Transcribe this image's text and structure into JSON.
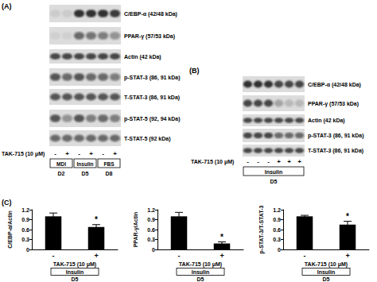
{
  "panel_labels": [
    "(A)",
    "(B)",
    "(C)"
  ],
  "blot_A": {
    "rows": [
      "C/EBP-α (42/48 kDa)",
      "PPAR-γ (57/53 kDa)",
      "Actin (42 kDa)",
      "p-STAT-3 (86, 91 kDa)",
      "T-STAT-3 (86, 91 kDa)",
      "p-STAT-5 (92, 94 kDa)",
      "T-STAT-5 (92 kDa)"
    ],
    "treatment_label": "TAK-715 (10 μM)",
    "treatment": [
      "-",
      "+",
      "-",
      "+",
      "-",
      "+"
    ],
    "groups": [
      {
        "inducer": "MDI",
        "day": "D2"
      },
      {
        "inducer": "Insulin",
        "day": "D5"
      },
      {
        "inducer": "FBS",
        "day": "D8"
      }
    ]
  },
  "blot_B": {
    "rows": [
      "C/EBP-α (42/48 kDa)",
      "PPAR-γ (57/53 kDa)",
      "Actin (42 kDa)",
      "p-STAT-3 (86, 91 kDa)",
      "T-STAT-3 (86, 91 kDa)"
    ],
    "treatment_label": "TAK-715 (10 μM)",
    "treatment": [
      "-",
      "-",
      "-",
      "+",
      "+",
      "+"
    ],
    "inducer": "Insulin",
    "day": "D5"
  },
  "chart_data": [
    {
      "type": "bar",
      "y_label": "C/EBP-α/Actin",
      "x_label": "TAK-715 (10 μM)",
      "inducer": "Insulin",
      "day": "D5",
      "categories": [
        "-",
        "+"
      ],
      "values": [
        1.0,
        0.68
      ],
      "errors": [
        0.1,
        0.07
      ],
      "annotations": [
        null,
        "*"
      ],
      "color": "#000000",
      "ylim": [
        0,
        1.2
      ],
      "yticks": [
        0,
        0.3,
        0.6,
        0.9,
        1.2
      ],
      "grid": false
    },
    {
      "type": "bar",
      "y_label": "PPAR-γ/Actin",
      "x_label": "TAK-715 (10 μM)",
      "inducer": "Insulin",
      "day": "D5",
      "categories": [
        "-",
        "+"
      ],
      "values": [
        1.0,
        0.18
      ],
      "errors": [
        0.12,
        0.05
      ],
      "annotations": [
        null,
        "*"
      ],
      "color": "#000000",
      "ylim": [
        0,
        1.2
      ],
      "yticks": [
        0,
        0.3,
        0.6,
        0.9,
        1.2
      ],
      "grid": false
    },
    {
      "type": "bar",
      "y_label": "p-STAT-3/T-STAT-3",
      "x_label": "TAK-715 (10 μM)",
      "inducer": "Insulin",
      "day": "D5",
      "categories": [
        "-",
        "+"
      ],
      "values": [
        1.0,
        0.75
      ],
      "errors": [
        0.03,
        0.1
      ],
      "annotations": [
        null,
        "*"
      ],
      "color": "#000000",
      "ylim": [
        0,
        1.2
      ],
      "yticks": [
        0,
        0.3,
        0.6,
        0.9,
        1.2
      ],
      "grid": false
    }
  ]
}
